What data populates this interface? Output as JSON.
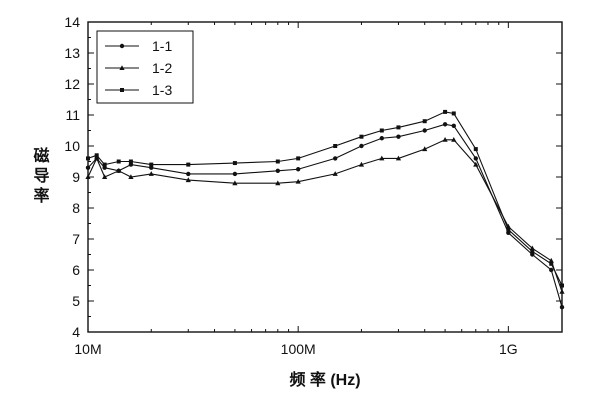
{
  "chart_data": {
    "type": "line",
    "title": "",
    "xlabel": "频 率 (Hz)",
    "ylabel": "磁导率",
    "x_scale": "log",
    "xlim": [
      10000000,
      1800000000
    ],
    "ylim": [
      4,
      14
    ],
    "x_ticks": [
      {
        "value": 10000000,
        "label": "10M"
      },
      {
        "value": 100000000,
        "label": "100M"
      },
      {
        "value": 1000000000,
        "label": "1G"
      }
    ],
    "y_ticks": [
      4,
      5,
      6,
      7,
      8,
      9,
      10,
      11,
      12,
      13,
      14
    ],
    "legend_position": "top-left",
    "grid": false,
    "series": [
      {
        "name": "1-1",
        "marker": "circle",
        "x": [
          10000000,
          11000000,
          12000000,
          14000000,
          16000000,
          20000000,
          30000000,
          50000000,
          80000000,
          100000000,
          150000000,
          200000000,
          250000000,
          300000000,
          400000000,
          500000000,
          550000000,
          700000000,
          1000000000,
          1300000000,
          1600000000,
          1800000000
        ],
        "y": [
          9.3,
          9.6,
          9.3,
          9.2,
          9.4,
          9.3,
          9.1,
          9.1,
          9.2,
          9.25,
          9.6,
          10.0,
          10.25,
          10.3,
          10.5,
          10.7,
          10.65,
          9.6,
          7.2,
          6.5,
          6.0,
          4.8
        ]
      },
      {
        "name": "1-2",
        "marker": "triangle",
        "x": [
          10000000,
          11000000,
          12000000,
          14000000,
          16000000,
          20000000,
          30000000,
          50000000,
          80000000,
          100000000,
          150000000,
          200000000,
          250000000,
          300000000,
          400000000,
          500000000,
          550000000,
          700000000,
          1000000000,
          1300000000,
          1600000000,
          1800000000
        ],
        "y": [
          9.0,
          9.6,
          9.0,
          9.2,
          9.0,
          9.1,
          8.9,
          8.8,
          8.8,
          8.85,
          9.1,
          9.4,
          9.6,
          9.6,
          9.9,
          10.2,
          10.2,
          9.4,
          7.4,
          6.7,
          6.3,
          5.3
        ]
      },
      {
        "name": "1-3",
        "marker": "square",
        "x": [
          10000000,
          11000000,
          12000000,
          14000000,
          16000000,
          20000000,
          30000000,
          50000000,
          80000000,
          100000000,
          150000000,
          200000000,
          250000000,
          300000000,
          400000000,
          500000000,
          550000000,
          700000000,
          1000000000,
          1300000000,
          1600000000,
          1800000000
        ],
        "y": [
          9.6,
          9.7,
          9.4,
          9.5,
          9.5,
          9.4,
          9.4,
          9.45,
          9.5,
          9.6,
          10.0,
          10.3,
          10.5,
          10.6,
          10.8,
          11.1,
          11.05,
          9.9,
          7.3,
          6.6,
          6.2,
          5.5
        ]
      }
    ]
  }
}
